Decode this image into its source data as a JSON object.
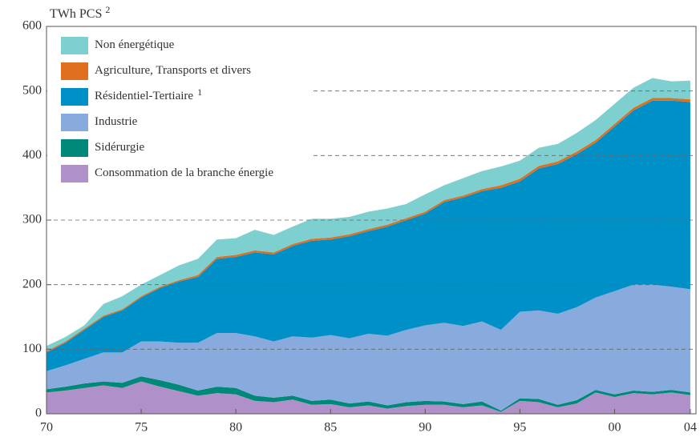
{
  "chart_data": {
    "type": "stacked_area",
    "y_label": "TWh PCS",
    "y_label_note": "2",
    "x": [
      1970,
      1971,
      1972,
      1973,
      1974,
      1975,
      1976,
      1977,
      1978,
      1979,
      1980,
      1981,
      1982,
      1983,
      1984,
      1985,
      1986,
      1987,
      1988,
      1989,
      1990,
      1991,
      1992,
      1993,
      1994,
      1995,
      1996,
      1997,
      1998,
      1999,
      2000,
      2001,
      2002,
      2003,
      2004
    ],
    "xlim": [
      1970,
      2004.3
    ],
    "xticks": [
      {
        "value": 1970,
        "label": "70"
      },
      {
        "value": 1975,
        "label": "75"
      },
      {
        "value": 1980,
        "label": "80"
      },
      {
        "value": 1985,
        "label": "85"
      },
      {
        "value": 1990,
        "label": "90"
      },
      {
        "value": 1995,
        "label": "95"
      },
      {
        "value": 2000,
        "label": "00"
      },
      {
        "value": 2004,
        "label": "04"
      }
    ],
    "ylim": [
      0,
      600
    ],
    "yticks": [
      0,
      100,
      200,
      300,
      400,
      500,
      600
    ],
    "grid": true,
    "legend": "top-left",
    "series": [
      {
        "name": "Consommation de la branche énergie",
        "color": "#b090c8",
        "values": [
          33,
          36,
          40,
          44,
          40,
          50,
          42,
          35,
          28,
          32,
          30,
          20,
          18,
          22,
          14,
          15,
          10,
          13,
          8,
          12,
          14,
          14,
          10,
          13,
          3,
          20,
          18,
          10,
          16,
          33,
          26,
          32,
          30,
          33,
          29
        ]
      },
      {
        "name": "Sidérurgie",
        "color": "#008878",
        "values": [
          5,
          6,
          7,
          6,
          8,
          8,
          10,
          10,
          8,
          10,
          10,
          8,
          7,
          6,
          6,
          7,
          6,
          6,
          5,
          6,
          6,
          5,
          5,
          6,
          2,
          4,
          5,
          4,
          5,
          4,
          4,
          4,
          4,
          4,
          4
        ]
      },
      {
        "name": "Industrie",
        "color": "#88aadd",
        "values": [
          28,
          33,
          38,
          45,
          47,
          54,
          60,
          65,
          74,
          83,
          85,
          92,
          87,
          92,
          98,
          100,
          101,
          105,
          108,
          112,
          117,
          122,
          121,
          124,
          125,
          134,
          137,
          141,
          144,
          143,
          160,
          164,
          166,
          160,
          160
        ]
      },
      {
        "name": "Résidentiel-Tertiaire",
        "note": "1",
        "color": "#0090c8",
        "values": [
          29,
          35,
          45,
          55,
          65,
          68,
          83,
          95,
          102,
          115,
          118,
          130,
          135,
          140,
          150,
          148,
          158,
          159,
          169,
          170,
          173,
          187,
          199,
          202,
          220,
          202,
          220,
          232,
          237,
          240,
          255,
          270,
          285,
          288,
          290
        ]
      },
      {
        "name": "Agriculture, Transports et divers",
        "color": "#e07020",
        "values": [
          2,
          2,
          2,
          2,
          2,
          2,
          2,
          2,
          3,
          3,
          3,
          3,
          3,
          3,
          3,
          3,
          3,
          3,
          3,
          3,
          3,
          3,
          3,
          3,
          4,
          4,
          4,
          4,
          4,
          4,
          4,
          4,
          4,
          4,
          4
        ]
      },
      {
        "name": "Non énergétique",
        "color": "#7ecfd0",
        "values": [
          8,
          7,
          5,
          18,
          20,
          18,
          18,
          23,
          25,
          27,
          26,
          32,
          27,
          27,
          31,
          29,
          27,
          27,
          25,
          22,
          27,
          23,
          27,
          28,
          29,
          28,
          28,
          27,
          29,
          31,
          31,
          31,
          31,
          26,
          29
        ]
      }
    ]
  }
}
